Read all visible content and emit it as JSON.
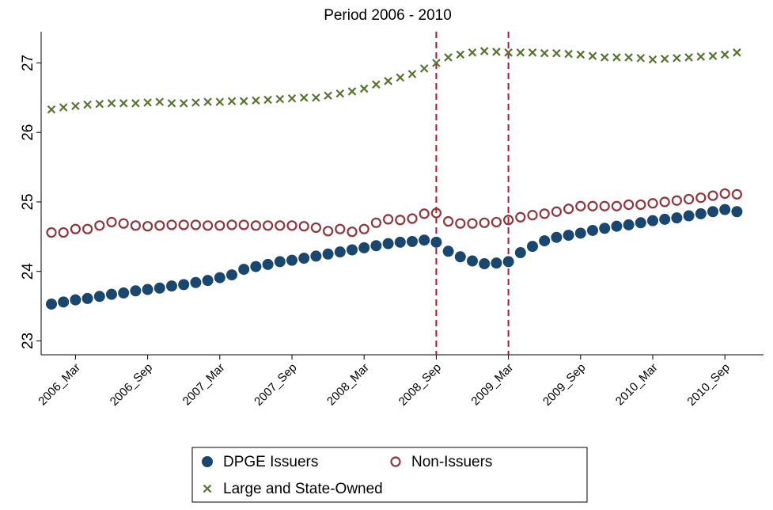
{
  "chart_data": {
    "type": "scatter",
    "title": "Period 2006 - 2010",
    "categories": [
      null,
      null,
      "2006_Mar",
      null,
      null,
      null,
      null,
      null,
      "2006_Sep",
      null,
      null,
      null,
      null,
      null,
      "2007_Mar",
      null,
      null,
      null,
      null,
      null,
      "2007_Sep",
      null,
      null,
      null,
      null,
      null,
      "2008_Mar",
      null,
      null,
      null,
      null,
      null,
      "2008_Sep",
      null,
      null,
      null,
      null,
      null,
      "2009_Mar",
      null,
      null,
      null,
      null,
      null,
      "2009_Sep",
      null,
      null,
      null,
      null,
      null,
      "2010_Mar",
      null,
      null,
      null,
      null,
      null,
      "2010_Sep",
      null
    ],
    "series": [
      {
        "name": "DPGE Issuers",
        "color": "#1a476f",
        "marker": "filled-circle",
        "values": [
          23.53,
          23.56,
          23.59,
          23.61,
          23.64,
          23.67,
          23.69,
          23.72,
          23.74,
          23.76,
          23.79,
          23.81,
          23.84,
          23.87,
          23.91,
          23.95,
          24.03,
          24.07,
          24.1,
          24.14,
          24.16,
          24.19,
          24.22,
          24.25,
          24.28,
          24.31,
          24.34,
          24.37,
          24.4,
          24.42,
          24.43,
          24.45,
          24.42,
          24.29,
          24.21,
          24.15,
          24.11,
          24.12,
          24.14,
          24.27,
          24.36,
          24.44,
          24.49,
          24.52,
          24.55,
          24.59,
          24.62,
          24.65,
          24.67,
          24.7,
          24.73,
          24.75,
          24.77,
          24.8,
          24.83,
          24.86,
          24.89,
          24.86
        ]
      },
      {
        "name": "Non-Issuers",
        "color": "#90353b",
        "marker": "hollow-circle",
        "values": [
          24.56,
          24.56,
          24.61,
          24.61,
          24.66,
          24.71,
          24.69,
          24.66,
          24.65,
          24.66,
          24.67,
          24.67,
          24.67,
          24.66,
          24.66,
          24.67,
          24.67,
          24.66,
          24.66,
          24.66,
          24.66,
          24.65,
          24.63,
          24.58,
          24.61,
          24.57,
          24.61,
          24.7,
          24.75,
          24.74,
          24.76,
          24.83,
          24.84,
          24.72,
          24.69,
          24.69,
          24.7,
          24.71,
          24.74,
          24.78,
          24.81,
          24.83,
          24.86,
          24.9,
          24.94,
          24.94,
          24.94,
          24.94,
          24.96,
          24.96,
          24.98,
          25.0,
          25.02,
          25.04,
          25.06,
          25.09,
          25.12,
          25.11
        ]
      },
      {
        "name": "Large and State-Owned",
        "color": "#55752f",
        "marker": "x",
        "values": [
          26.33,
          26.36,
          26.38,
          26.4,
          26.41,
          26.42,
          26.42,
          26.42,
          26.43,
          26.44,
          26.42,
          26.42,
          26.43,
          26.44,
          26.44,
          26.45,
          26.45,
          26.46,
          26.47,
          26.48,
          26.49,
          26.5,
          26.5,
          26.53,
          26.56,
          26.59,
          26.63,
          26.69,
          26.74,
          26.79,
          26.84,
          26.92,
          27.0,
          27.08,
          27.12,
          27.15,
          27.17,
          27.16,
          27.15,
          27.15,
          27.15,
          27.14,
          27.14,
          27.13,
          27.12,
          27.1,
          27.08,
          27.08,
          27.08,
          27.07,
          27.05,
          27.06,
          27.07,
          27.08,
          27.09,
          27.1,
          27.12,
          27.15
        ]
      }
    ],
    "ylim": [
      22.8,
      27.45
    ],
    "yticks": [
      23,
      24,
      25,
      26,
      27
    ],
    "vlines": [
      32,
      38
    ],
    "vline_color": "#b0172e",
    "grid": false,
    "legend_position": "bottom"
  }
}
